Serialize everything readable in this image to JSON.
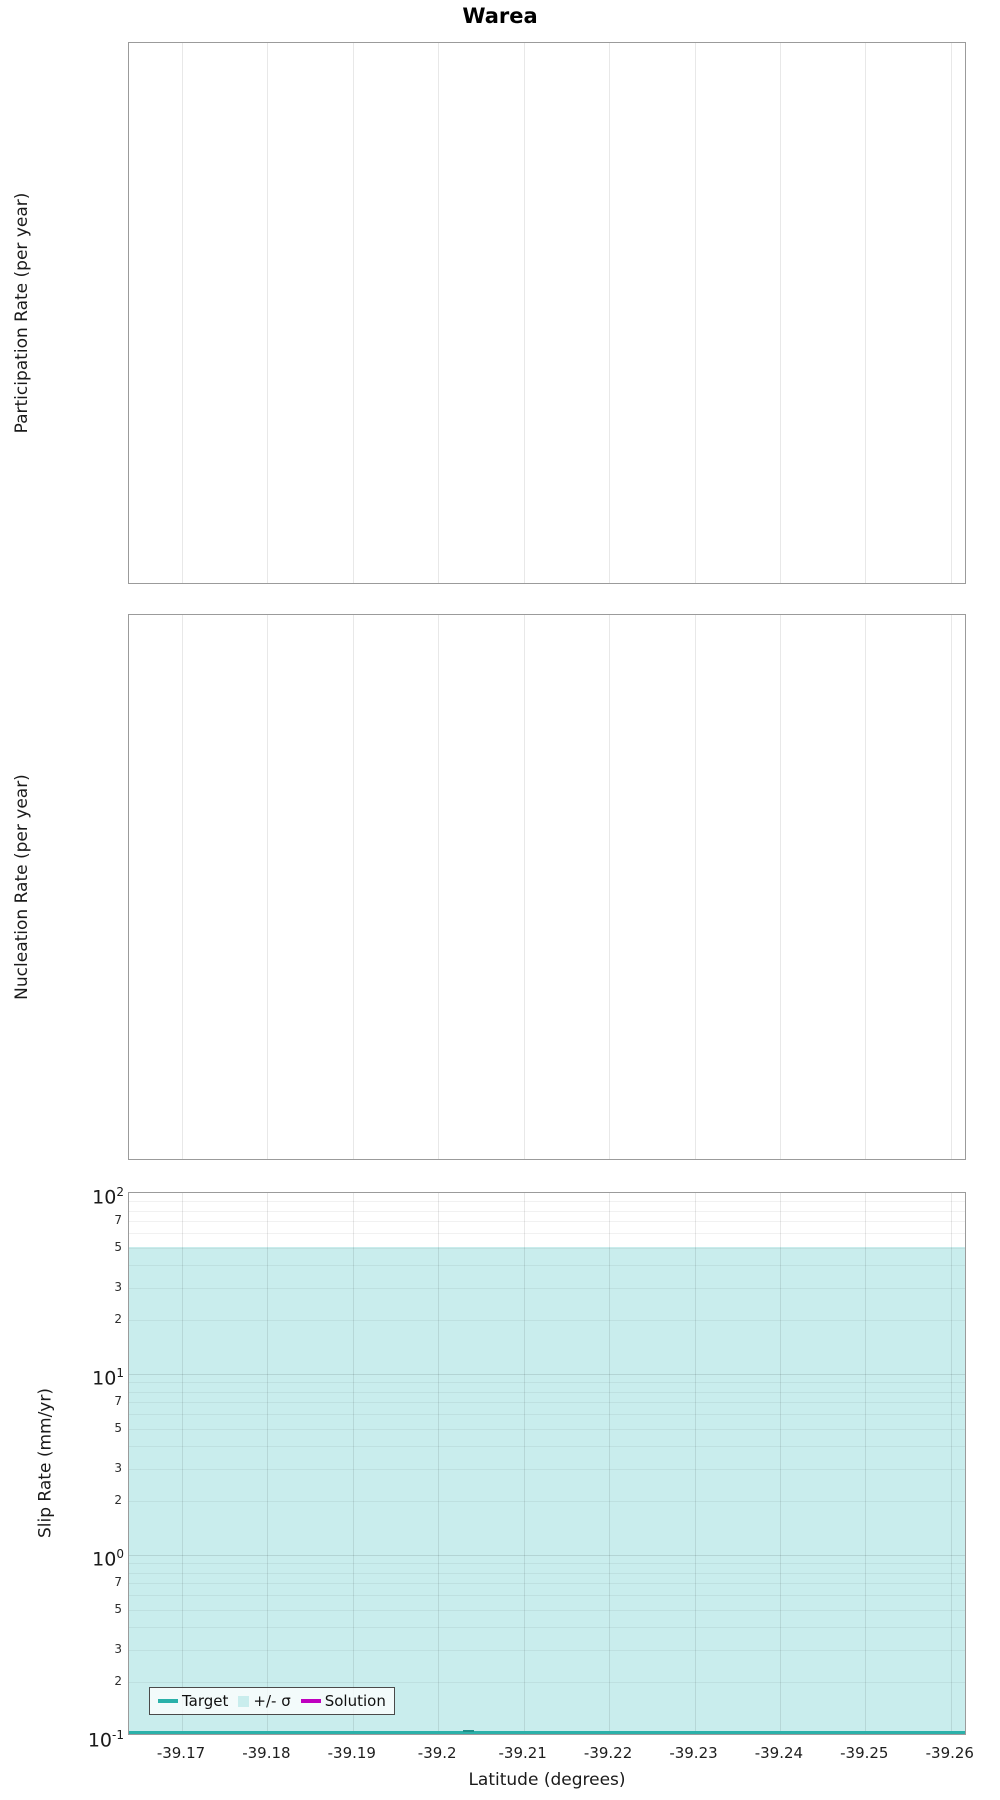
{
  "title": "Warea",
  "chart_data": [
    {
      "type": "line",
      "panel": "top",
      "title": "Warea",
      "ylabel": "Participation Rate (per year)",
      "xlabel": "",
      "xlim": [
        -39.1638,
        -39.2619
      ],
      "x_ticks": [
        -39.17,
        -39.18,
        -39.19,
        -39.2,
        -39.21,
        -39.22,
        -39.23,
        -39.24,
        -39.25,
        -39.26
      ],
      "x_tick_labels_shown": false,
      "y_tick_labels_shown": false,
      "grid": "vertical",
      "series": []
    },
    {
      "type": "line",
      "panel": "middle",
      "ylabel": "Nucleation Rate (per year)",
      "xlabel": "",
      "xlim": [
        -39.1638,
        -39.2619
      ],
      "x_ticks": [
        -39.17,
        -39.18,
        -39.19,
        -39.2,
        -39.21,
        -39.22,
        -39.23,
        -39.24,
        -39.25,
        -39.26
      ],
      "x_tick_labels_shown": false,
      "y_tick_labels_shown": false,
      "grid": "vertical",
      "series": []
    },
    {
      "type": "area",
      "panel": "bottom",
      "ylabel": "Slip Rate (mm/yr)",
      "xlabel": "Latitude (degrees)",
      "xlim": [
        -39.1638,
        -39.2619
      ],
      "x_ticks": [
        -39.17,
        -39.18,
        -39.19,
        -39.2,
        -39.21,
        -39.22,
        -39.23,
        -39.24,
        -39.25,
        -39.26
      ],
      "x_tick_labels": [
        "-39.17",
        "-39.18",
        "-39.19",
        "-39.2",
        "-39.21",
        "-39.22",
        "-39.23",
        "-39.24",
        "-39.25",
        "-39.26"
      ],
      "yscale": "log",
      "ylim": [
        0.1,
        100
      ],
      "y_major_ticks": [
        {
          "mantissa": "10",
          "exp": "2",
          "value": 100
        },
        {
          "mantissa": "10",
          "exp": "1",
          "value": 10
        },
        {
          "mantissa": "10",
          "exp": "0",
          "value": 1
        },
        {
          "mantissa": "10",
          "exp": "-1",
          "value": 0.1
        }
      ],
      "y_minor_label_mantissas": [
        7,
        5,
        3,
        2
      ],
      "y_minor_grid_mantissas": [
        2,
        3,
        4,
        5,
        6,
        7,
        8,
        9
      ],
      "grid": "both",
      "legend": {
        "position": "bottom-left",
        "items": [
          {
            "label": "Target",
            "marker": "line",
            "color": "#2bb1aa"
          },
          {
            "label": "+/- σ",
            "marker": "square",
            "color": "#c9eded"
          },
          {
            "label": "Solution",
            "marker": "line",
            "color": "#bf00bf"
          }
        ]
      },
      "series": [
        {
          "name": "+/- σ",
          "type": "band",
          "upper": 50,
          "lower": 0.1,
          "color": "#c9eded"
        },
        {
          "name": "Solution",
          "type": "hline",
          "value": 0.1,
          "color": "#bf00bf",
          "line_width": 2
        },
        {
          "name": "Target",
          "type": "hline",
          "value": 0.1,
          "color": "#2bb1aa",
          "line_width": 3,
          "bump": {
            "x_from": -39.2029,
            "x_to": -39.2042,
            "value": 0.105
          }
        }
      ]
    }
  ]
}
